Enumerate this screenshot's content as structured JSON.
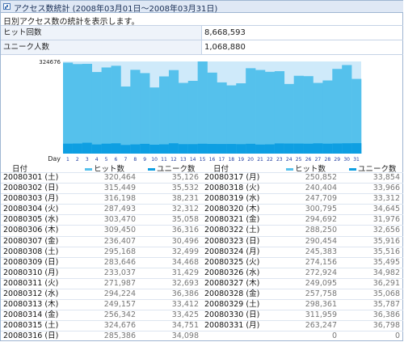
{
  "title": "アクセス数統計 (2008年03月01日～2008年03月31日)",
  "description": "日別アクセス数の統計を表示します。",
  "stats": {
    "hits_label": "ヒット回数",
    "hits_value": "8,668,593",
    "uniques_label": "ユニーク人数",
    "uniques_value": "1,068,880"
  },
  "colors": {
    "hits": "#55c1ec",
    "uniques": "#0e9fe2",
    "hits_bg": "#cfeafa"
  },
  "table_headers": {
    "date": "日付",
    "hits": "ヒット数",
    "uniques": "ユニーク数"
  },
  "chart_data": {
    "type": "bar",
    "y_max_label": "324676",
    "x_axis_label": "Day",
    "ylim": [
      0,
      324676
    ],
    "categories": [
      "1",
      "2",
      "3",
      "4",
      "5",
      "6",
      "7",
      "8",
      "9",
      "10",
      "11",
      "12",
      "13",
      "14",
      "15",
      "16",
      "17",
      "18",
      "19",
      "20",
      "21",
      "22",
      "23",
      "24",
      "25",
      "26",
      "27",
      "28",
      "29",
      "30",
      "31"
    ],
    "series": [
      {
        "name": "ヒット数",
        "values": [
          320464,
          315449,
          316198,
          287493,
          303470,
          309450,
          236407,
          295168,
          283646,
          233037,
          271987,
          294224,
          249157,
          256342,
          324676,
          285386,
          250852,
          240404,
          247709,
          300795,
          294692,
          288250,
          290454,
          245383,
          274156,
          272924,
          249095,
          257758,
          298361,
          311959,
          263247
        ]
      },
      {
        "name": "ユニーク数",
        "values": [
          35126,
          35532,
          38231,
          32312,
          35058,
          36316,
          30496,
          32499,
          34468,
          31429,
          32693,
          36386,
          33412,
          33425,
          34751,
          34098,
          33854,
          33966,
          33312,
          34645,
          31976,
          32656,
          35916,
          35516,
          35495,
          34982,
          36291,
          35068,
          35787,
          36386,
          36798
        ]
      }
    ]
  },
  "rows_left": [
    {
      "date": "20080301 (土)",
      "hits": "320,464",
      "uniques": "35,126"
    },
    {
      "date": "20080302 (日)",
      "hits": "315,449",
      "uniques": "35,532"
    },
    {
      "date": "20080303 (月)",
      "hits": "316,198",
      "uniques": "38,231"
    },
    {
      "date": "20080304 (火)",
      "hits": "287,493",
      "uniques": "32,312"
    },
    {
      "date": "20080305 (水)",
      "hits": "303,470",
      "uniques": "35,058"
    },
    {
      "date": "20080306 (木)",
      "hits": "309,450",
      "uniques": "36,316"
    },
    {
      "date": "20080307 (金)",
      "hits": "236,407",
      "uniques": "30,496"
    },
    {
      "date": "20080308 (土)",
      "hits": "295,168",
      "uniques": "32,499"
    },
    {
      "date": "20080309 (日)",
      "hits": "283,646",
      "uniques": "34,468"
    },
    {
      "date": "20080310 (月)",
      "hits": "233,037",
      "uniques": "31,429"
    },
    {
      "date": "20080311 (火)",
      "hits": "271,987",
      "uniques": "32,693"
    },
    {
      "date": "20080312 (水)",
      "hits": "294,224",
      "uniques": "36,386"
    },
    {
      "date": "20080313 (木)",
      "hits": "249,157",
      "uniques": "33,412"
    },
    {
      "date": "20080314 (金)",
      "hits": "256,342",
      "uniques": "33,425"
    },
    {
      "date": "20080315 (土)",
      "hits": "324,676",
      "uniques": "34,751"
    },
    {
      "date": "20080316 (日)",
      "hits": "285,386",
      "uniques": "34,098"
    }
  ],
  "rows_right": [
    {
      "date": "20080317 (月)",
      "hits": "250,852",
      "uniques": "33,854"
    },
    {
      "date": "20080318 (火)",
      "hits": "240,404",
      "uniques": "33,966"
    },
    {
      "date": "20080319 (水)",
      "hits": "247,709",
      "uniques": "33,312"
    },
    {
      "date": "20080320 (木)",
      "hits": "300,795",
      "uniques": "34,645"
    },
    {
      "date": "20080321 (金)",
      "hits": "294,692",
      "uniques": "31,976"
    },
    {
      "date": "20080322 (土)",
      "hits": "288,250",
      "uniques": "32,656"
    },
    {
      "date": "20080323 (日)",
      "hits": "290,454",
      "uniques": "35,916"
    },
    {
      "date": "20080324 (月)",
      "hits": "245,383",
      "uniques": "35,516"
    },
    {
      "date": "20080325 (火)",
      "hits": "274,156",
      "uniques": "35,495"
    },
    {
      "date": "20080326 (水)",
      "hits": "272,924",
      "uniques": "34,982"
    },
    {
      "date": "20080327 (木)",
      "hits": "249,095",
      "uniques": "36,291"
    },
    {
      "date": "20080328 (金)",
      "hits": "257,758",
      "uniques": "35,068"
    },
    {
      "date": "20080329 (土)",
      "hits": "298,361",
      "uniques": "35,787"
    },
    {
      "date": "20080330 (日)",
      "hits": "311,959",
      "uniques": "36,386"
    },
    {
      "date": "20080331 (月)",
      "hits": "263,247",
      "uniques": "36,798"
    },
    {
      "date": "",
      "hits": "0",
      "uniques": "0"
    }
  ]
}
